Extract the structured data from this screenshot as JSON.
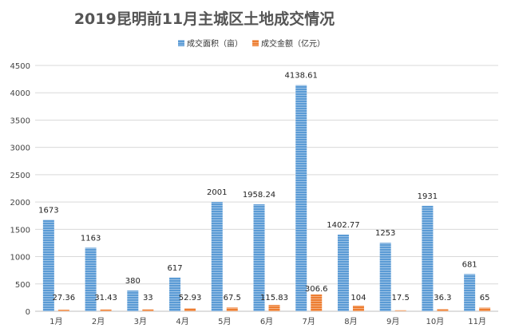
{
  "chart_data": {
    "type": "bar",
    "title": "2019昆明前11月主城区土地成交情况",
    "xlabel": "",
    "ylabel": "",
    "categories": [
      "1月",
      "2月",
      "3月",
      "4月",
      "5月",
      "6月",
      "7月",
      "8月",
      "9月",
      "10月",
      "11月"
    ],
    "series": [
      {
        "name": "成交面积（亩）",
        "color": "#5b9bd5",
        "values": [
          1673,
          1163,
          380,
          617,
          2001,
          1958.24,
          4138.61,
          1402.77,
          1253,
          1931,
          681
        ],
        "labels": [
          "1673",
          "1163",
          "380",
          "617",
          "2001",
          "1958.24",
          "4138.61",
          "1402.77",
          "1253",
          "1931",
          "681"
        ]
      },
      {
        "name": "成交金额（亿元）",
        "color": "#ed7d31",
        "values": [
          27.36,
          31.43,
          33,
          52.93,
          67.5,
          115.83,
          306.6,
          104,
          17.5,
          36.3,
          65
        ],
        "labels": [
          "27.36",
          "31.43",
          "33",
          "52.93",
          "67.5",
          "115.83",
          "306.6",
          "104",
          "17.5",
          "36.3",
          "65"
        ]
      }
    ],
    "ylim": [
      0,
      4500
    ],
    "yticks": [
      "0",
      "500",
      "1000",
      "1500",
      "2000",
      "2500",
      "3000",
      "3500",
      "4000",
      "4500"
    ],
    "grid": true,
    "legend_position": "top-center"
  }
}
